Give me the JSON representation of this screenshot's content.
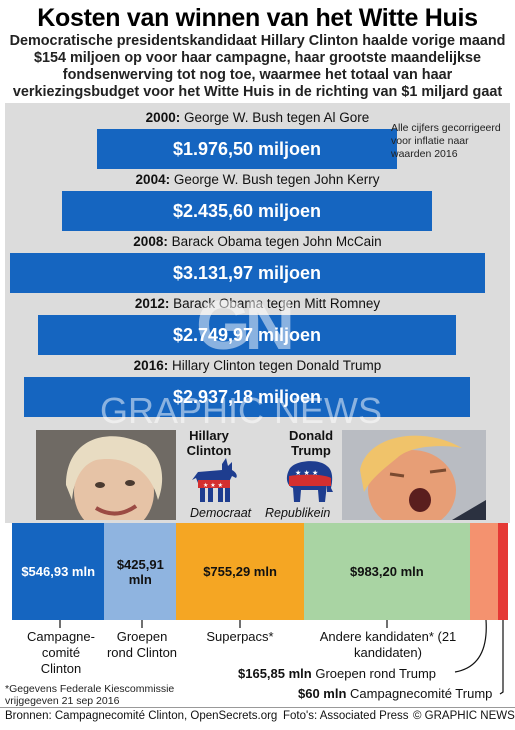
{
  "title": "Kosten van winnen van het Witte Huis",
  "subtitle": "Democratische presidentskandidaat Hillary Clinton haalde vorige maand $154 miljoen op voor haar campagne, haar grootste maandelijkse fondsenwerving tot nog toe, waarmee het totaal van haar verkiezingsbudget voor het Witte Huis in de richting van $1 miljard gaat",
  "inflation_note": "Alle cijfers gecorrigeerd voor inflatie naar waarden 2016",
  "chart_data": [
    {
      "type": "bar",
      "unit": "miljoen",
      "categories": [
        "2000",
        "2004",
        "2008",
        "2012",
        "2016"
      ],
      "matchups": [
        "George W. Bush tegen Al Gore",
        "George W. Bush tegen John Kerry",
        "Barack Obama tegen John McCain",
        "Barack Obama tegen Mitt Romney",
        "Hillary Clinton tegen Donald Trump"
      ],
      "values": [
        1976.5,
        2435.6,
        3131.97,
        2749.97,
        2937.18
      ],
      "value_labels": [
        "$1.976,50 miljoen",
        "$2.435,60 miljoen",
        "$3.131,97 miljoen",
        "$2.749,97 miljoen",
        "$2.937,18 miljoen"
      ],
      "color": "#1565c0"
    },
    {
      "type": "bar",
      "orientation": "stacked-horizontal",
      "categories": [
        "Campagne-comité Clinton",
        "Groepen rond Clinton",
        "Superpacs*",
        "Andere kandidaten* (21 kandidaten)",
        "Groepen rond Trump",
        "Campagnecomité Trump"
      ],
      "values": [
        546.93,
        425.91,
        755.29,
        983.2,
        165.85,
        60
      ],
      "value_labels": [
        "$546,93 mln",
        "$425,91 mln",
        "$755,29 mln",
        "$983,20 mln",
        "$165,85 mln",
        "$60 mln"
      ],
      "colors": [
        "#1565c0",
        "#8fb4e0",
        "#f5a623",
        "#a9d4a3",
        "#f4926f",
        "#e53935"
      ]
    }
  ],
  "candidates": {
    "dem_name": "Hillary Clinton",
    "dem_party": "Democraat",
    "rep_name": "Donald Trump",
    "rep_party": "Republikein"
  },
  "category_labels": {
    "c1": "Campagne-comité Clinton",
    "c2": "Groepen rond Clinton",
    "c3": "Superpacs*",
    "c4": "Andere kandidaten* (21 kandidaten)",
    "c5_value": "$165,85 mln",
    "c5_name": "Groepen rond Trump",
    "c6_value": "$60 mln",
    "c6_name": "Campagnecomité Trump"
  },
  "footnote": "*Gegevens Federale Kiescommissie vrijgegeven 21 sep 2016",
  "sources": "Bronnen: Campagnecomité Clinton, OpenSecrets.org",
  "photos": "Foto's: Associated Press",
  "copyright": "© GRAPHIC NEWS",
  "watermark_gn": "GN",
  "watermark_text": "GRAPHIC NEWS"
}
